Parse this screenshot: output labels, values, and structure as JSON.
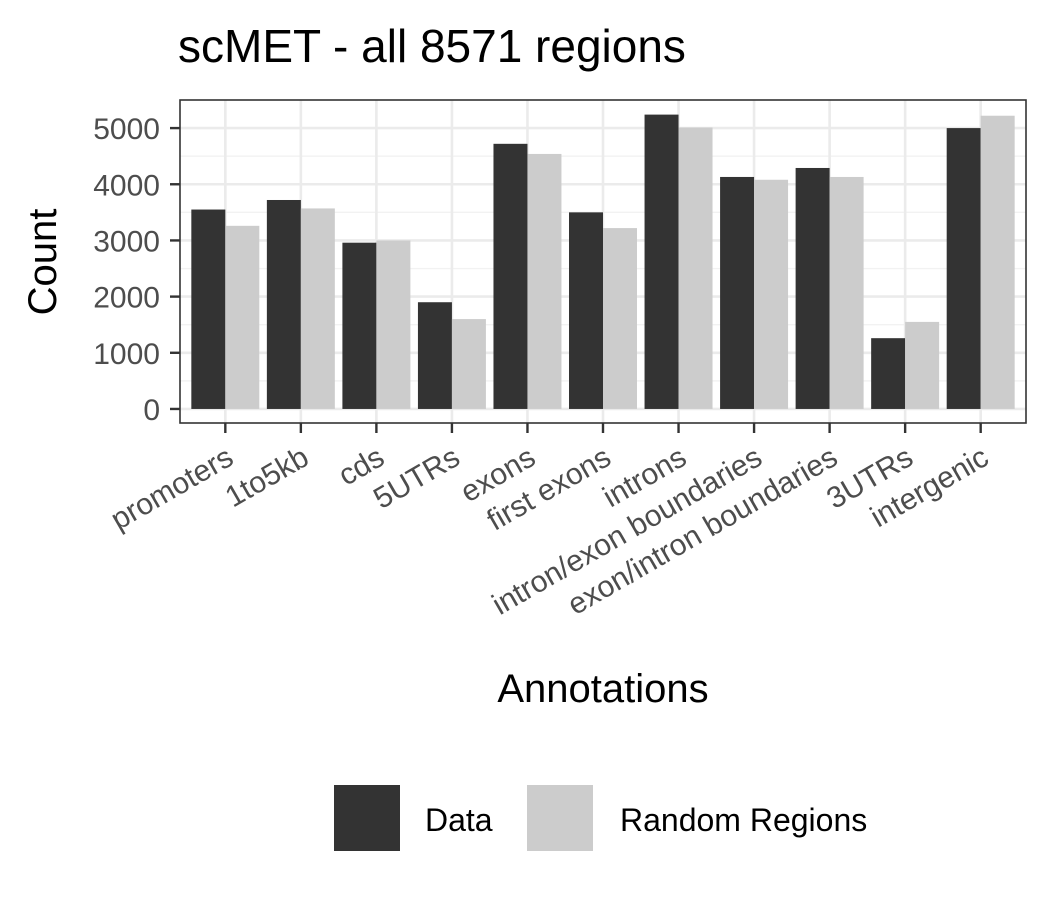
{
  "chart_data": {
    "type": "bar",
    "title": "scMET - all 8571 regions",
    "xlabel": "Annotations",
    "ylabel": "Count",
    "ylim": [
      -250,
      5500
    ],
    "yticks": [
      0,
      1000,
      2000,
      3000,
      4000,
      5000
    ],
    "grid": true,
    "legend_position": "bottom",
    "categories": [
      "promoters",
      "1to5kb",
      "cds",
      "5UTRs",
      "exons",
      "first exons",
      "introns",
      "intron/exon boundaries",
      "exon/intron boundaries",
      "3UTRs",
      "intergenic"
    ],
    "series": [
      {
        "name": "Data",
        "color": "#333333",
        "values": [
          3550,
          3720,
          2960,
          1900,
          4720,
          3500,
          5240,
          4130,
          4290,
          1260,
          5000
        ]
      },
      {
        "name": "Random Regions",
        "color": "#cccccc",
        "values": [
          3260,
          3570,
          3000,
          1600,
          4540,
          3220,
          5010,
          4080,
          4130,
          1550,
          5220
        ]
      }
    ]
  }
}
